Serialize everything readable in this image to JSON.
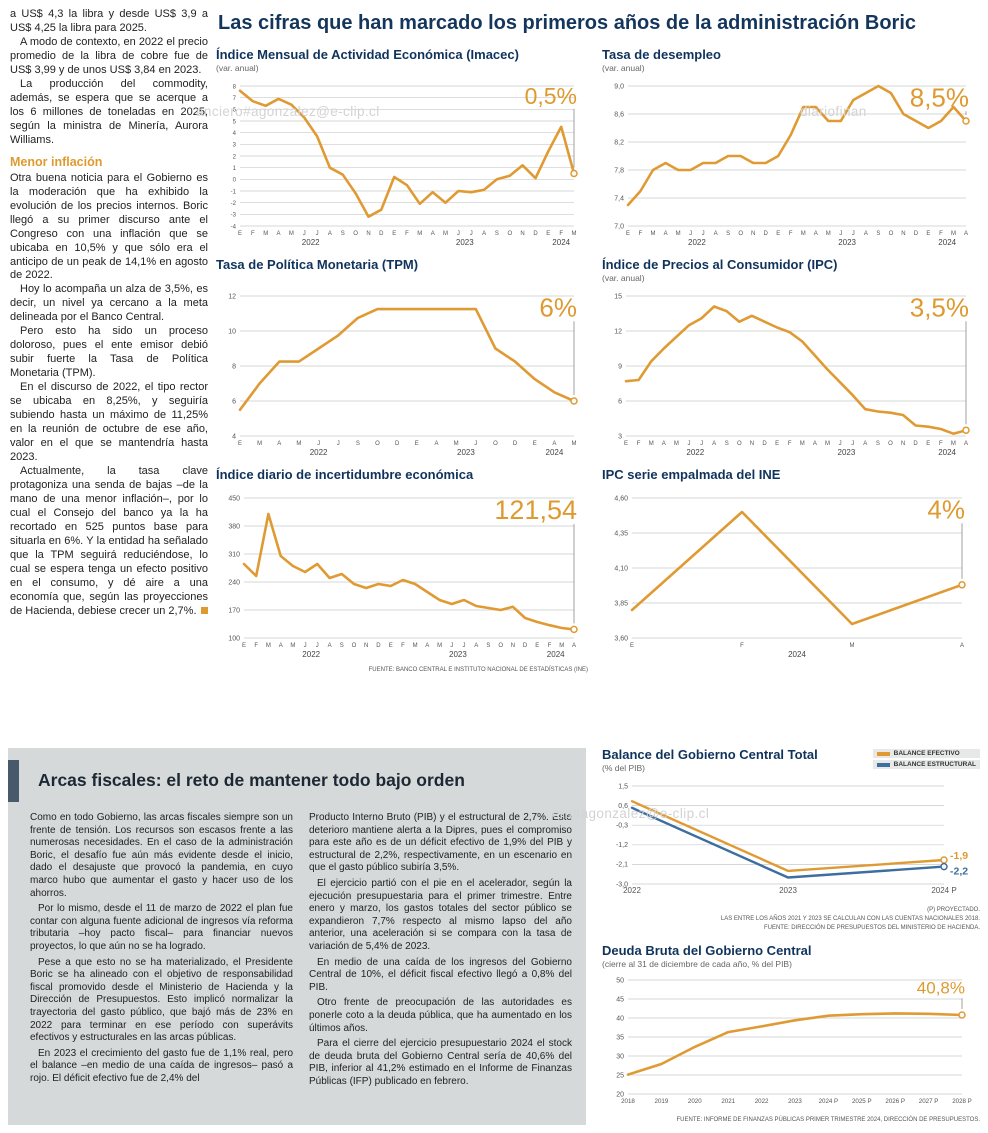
{
  "page": {
    "headline": "Las cifras que han marcado los primeros años de la administración Boric",
    "watermarks": {
      "top_left": "anciero#agonzalez@e-clip.cl",
      "top_right": "diariofinan",
      "middle": "ero#agonzalez@e-clip.cl"
    }
  },
  "colors": {
    "accent_orange": "#DE9A2F",
    "line_orange": "#E09A33",
    "line_blue": "#3C6E9F",
    "headline_navy": "#14365C"
  },
  "left_column": {
    "paragraphs": [
      "a US$ 4,3 la libra y desde US$ 3,9 a US$ 4,25 la libra para 2025.",
      "A modo de contexto, en 2022 el precio promedio de la libra de cobre fue de US$ 3,99 y de unos US$ 3,84 en 2023.",
      "La producción del commodity, además, se espera que se acerque a los 6 millones de toneladas en 2025, según la ministra de Minería, Aurora Williams."
    ],
    "subhead": "Menor inflación",
    "paragraphs2": [
      "Otra buena noticia para el Gobierno es la moderación que ha exhibido la evolución de los precios internos. Boric llegó a su primer discurso ante el Congreso con una inflación que se ubicaba en 10,5% y que sólo era el anticipo de un peak de 14,1% en agosto de 2022.",
      "Hoy lo acompaña un alza de 3,5%, es decir, un nivel ya cercano a la meta delineada por el Banco Central.",
      "Pero esto ha sido un proceso doloroso, pues el ente emisor debió subir fuerte la Tasa de Política Monetaria (TPM).",
      "En el discurso de 2022, el tipo rector se ubicaba en 8,25%, y seguiría subiendo hasta un máximo de 11,25% en la reunión de octubre de ese año, valor en el que se mantendría hasta 2023.",
      "Actualmente, la tasa clave protagoniza una senda de bajas –de la mano de una menor inflación–, por lo cual el Consejo del banco ya la ha recortado en 525 puntos base para situarla en 6%. Y la entidad ha señalado que la TPM seguirá reduciéndose, lo cual se espera tenga un efecto positivo en el consumo, y dé aire a una economía que, según las proyecciones de Hacienda, debiese crecer un 2,7%."
    ]
  },
  "fiscal_article": {
    "title": "Arcas fiscales: el reto de mantener todo bajo orden",
    "col1": [
      "Como en todo Gobierno, las arcas fiscales siempre son un frente de tensión. Los recursos son escasos frente a las numerosas necesidades. En el caso de la administración Boric, el desafío fue aún más evidente desde el inicio, dado el desajuste que provocó la pandemia, en cuyo marco hubo que aumentar el gasto y hacer uso de los ahorros.",
      "Por lo mismo, desde el 11 de marzo de 2022 el plan fue contar con alguna fuente adicional de ingresos vía reforma tributaria –hoy pacto fiscal– para financiar nuevos proyectos, lo que aún no se ha logrado.",
      "Pese a que esto no se ha materializado, el Presidente Boric se ha alineado con el objetivo de responsabilidad fiscal promovido desde el Ministerio de Hacienda y la Dirección de Presupuestos. Esto implicó normalizar la trayectoria del gasto público, que bajó más de 23% en 2022 para terminar en ese período con superávits efectivos y estructurales en las arcas públicas.",
      "En 2023 el crecimiento del gasto fue de 1,1% real, pero el balance –en medio de una caída de ingresos– pasó a rojo. El déficit efectivo fue de 2,4% del"
    ],
    "col2": [
      "Producto Interno Bruto (PIB) y el estructural de 2,7%. Este deterioro mantiene alerta a la Dipres, pues el compromiso para este año es de un déficit efectivo de 1,9% del PIB y estructural de 2,2%, respectivamente, en un escenario en que el gasto público subiría 3,5%.",
      "El ejercicio partió con el pie en el acelerador, según la ejecución presupuestaria para el primer trimestre. Entre enero y marzo, los gastos totales del sector público se expandieron 7,7% respecto al mismo lapso del año anterior, una aceleración si se compara con la tasa de variación de 5,4% de 2023.",
      "En medio de una caída de los ingresos del Gobierno Central de 10%, el déficit fiscal efectivo llegó a 0,8% del PIB.",
      "Otro frente de preocupación de las autoridades es ponerle coto a la deuda pública, que ha aumentado en los últimos años.",
      "Para el cierre del ejercicio presupuestario 2024 el stock de deuda bruta del Gobierno Central sería de 40,6% del PIB, inferior al 41,2% estimado en el Informe de Finanzas Públicas (IFP) publicado en febrero."
    ]
  },
  "sources": {
    "top_charts": "FUENTE: BANCO CENTRAL E INSTITUTO NACIONAL DE ESTADÍSTICAS (INE)",
    "balance_note1": "(P) PROYECTADO.",
    "balance_note2": "LAS ENTRE LOS AÑOS 2021 Y 2023 SE CALCULAN CON LAS CUENTAS NACIONALES 2018.",
    "balance_note3": "FUENTE: DIRECCIÓN DE PRESUPUESTOS DEL MINISTERIO DE HACIENDA.",
    "deuda": "FUENTE: INFORME DE FINANZAS PÚBLICAS PRIMER TRIMESTRE 2024, DIRECCIÓN DE PRESUPUESTOS."
  },
  "chart_data": [
    {
      "key": "imacec",
      "type": "line",
      "title": "Índice Mensual de Actividad Económica (Imacec)",
      "subtitle": "(var. anual)",
      "big_label": "0,5%",
      "big_label_size": 23,
      "h": 170,
      "margins": {
        "l": 24,
        "r": 14,
        "t": 8,
        "b": 22
      },
      "ylim": [
        -4,
        8
      ],
      "yticks": [
        8,
        7,
        6,
        5,
        4,
        3,
        2,
        1,
        0,
        -1,
        -2,
        -3,
        -4
      ],
      "ytick_format": "int",
      "ytick_size": 6,
      "x": [
        "E",
        "F",
        "M",
        "A",
        "M",
        "J",
        "J",
        "A",
        "S",
        "O",
        "N",
        "D",
        "E",
        "F",
        "M",
        "A",
        "M",
        "J",
        "J",
        "A",
        "S",
        "O",
        "N",
        "D",
        "E",
        "F",
        "M"
      ],
      "year_groups": [
        {
          "label": "2022",
          "count": 12
        },
        {
          "label": "2023",
          "count": 12
        },
        {
          "label": "2024",
          "count": 3
        }
      ],
      "series": [
        {
          "name": "Imacec var. anual",
          "color": "#E09A33",
          "values": [
            7.6,
            6.7,
            6.3,
            6.9,
            6.4,
            5.3,
            3.7,
            1.0,
            0.4,
            -1.2,
            -3.2,
            -2.6,
            0.2,
            -0.5,
            -2.1,
            -1.1,
            -2.0,
            -1.0,
            -1.1,
            -0.9,
            0.0,
            0.3,
            1.2,
            0.1,
            2.4,
            4.5,
            0.5
          ]
        }
      ]
    },
    {
      "key": "desempleo",
      "type": "line",
      "title": "Tasa de desempleo",
      "subtitle": "(var. anual)",
      "big_label": "8,5%",
      "big_label_size": 26,
      "h": 170,
      "margins": {
        "l": 26,
        "r": 14,
        "t": 8,
        "b": 22
      },
      "ylim": [
        7.0,
        9.0
      ],
      "yticks": [
        9.0,
        8.6,
        8.2,
        7.8,
        7.4,
        7.0
      ],
      "ytick_format": "c1",
      "ytick_size": 7,
      "x": [
        "E",
        "F",
        "M",
        "A",
        "M",
        "J",
        "J",
        "A",
        "S",
        "O",
        "N",
        "D",
        "E",
        "F",
        "M",
        "A",
        "M",
        "J",
        "J",
        "A",
        "S",
        "O",
        "N",
        "D",
        "E",
        "F",
        "M",
        "A"
      ],
      "year_groups": [
        {
          "label": "2022",
          "count": 12
        },
        {
          "label": "2023",
          "count": 12
        },
        {
          "label": "2024",
          "count": 4
        }
      ],
      "series": [
        {
          "name": "Tasa de desempleo",
          "color": "#E09A33",
          "values": [
            7.3,
            7.5,
            7.8,
            7.9,
            7.8,
            7.8,
            7.9,
            7.9,
            8.0,
            8.0,
            7.9,
            7.9,
            8.0,
            8.3,
            8.7,
            8.7,
            8.5,
            8.5,
            8.8,
            8.9,
            9.0,
            8.9,
            8.6,
            8.5,
            8.4,
            8.5,
            8.7,
            8.5
          ]
        }
      ]
    },
    {
      "key": "tpm",
      "type": "line",
      "title": "Tasa de Política Monetaria (TPM)",
      "big_label": "6%",
      "big_label_size": 26,
      "h": 170,
      "margins": {
        "l": 24,
        "r": 14,
        "t": 8,
        "b": 22
      },
      "ylim": [
        4,
        12
      ],
      "yticks": [
        12,
        10,
        8,
        6,
        4
      ],
      "ytick_format": "int",
      "ytick_size": 7,
      "x": [
        "E",
        "M",
        "A",
        "M",
        "J",
        "J",
        "S",
        "O",
        "D",
        "E",
        "A",
        "M",
        "J",
        "O",
        "D",
        "E",
        "A",
        "M"
      ],
      "year_groups": [
        {
          "label": "2022",
          "count": 9
        },
        {
          "label": "2023",
          "count": 6
        },
        {
          "label": "2024",
          "count": 3
        }
      ],
      "series": [
        {
          "name": "TPM",
          "color": "#E09A33",
          "values": [
            5.5,
            7.0,
            8.25,
            8.25,
            9.0,
            9.75,
            10.75,
            11.25,
            11.25,
            11.25,
            11.25,
            11.25,
            11.25,
            9.0,
            8.25,
            7.25,
            6.5,
            6.0
          ]
        }
      ]
    },
    {
      "key": "ipc",
      "type": "line",
      "title": "Índice de Precios al Consumidor (IPC)",
      "subtitle": "(var. anual)",
      "big_label": "3,5%",
      "big_label_size": 26,
      "h": 170,
      "margins": {
        "l": 24,
        "r": 14,
        "t": 8,
        "b": 22
      },
      "ylim": [
        3,
        15
      ],
      "yticks": [
        15,
        12,
        9,
        6,
        3
      ],
      "ytick_format": "int",
      "ytick_size": 7,
      "x": [
        "E",
        "F",
        "M",
        "A",
        "M",
        "J",
        "J",
        "A",
        "S",
        "O",
        "N",
        "D",
        "E",
        "F",
        "M",
        "A",
        "M",
        "J",
        "J",
        "A",
        "S",
        "O",
        "N",
        "D",
        "E",
        "F",
        "M",
        "A"
      ],
      "year_groups": [
        {
          "label": "2022",
          "count": 12
        },
        {
          "label": "2023",
          "count": 12
        },
        {
          "label": "2024",
          "count": 4
        }
      ],
      "series": [
        {
          "name": "IPC var. anual",
          "color": "#E09A33",
          "values": [
            7.7,
            7.8,
            9.4,
            10.5,
            11.5,
            12.5,
            13.1,
            14.1,
            13.7,
            12.8,
            13.3,
            12.8,
            12.3,
            11.9,
            11.1,
            9.9,
            8.7,
            7.6,
            6.5,
            5.3,
            5.1,
            5.0,
            4.8,
            3.9,
            3.8,
            3.6,
            3.2,
            3.5
          ]
        }
      ]
    },
    {
      "key": "incertidumbre",
      "type": "line",
      "title": "Índice diario de incertidumbre económica",
      "big_label": "121,54",
      "big_label_size": 27,
      "h": 170,
      "margins": {
        "l": 28,
        "r": 14,
        "t": 8,
        "b": 22
      },
      "ylim": [
        100,
        450
      ],
      "yticks": [
        450,
        380,
        310,
        240,
        170,
        100
      ],
      "ytick_format": "int",
      "ytick_size": 7,
      "x": [
        "E",
        "F",
        "M",
        "A",
        "M",
        "J",
        "J",
        "A",
        "S",
        "O",
        "N",
        "D",
        "E",
        "F",
        "M",
        "A",
        "M",
        "J",
        "J",
        "A",
        "S",
        "O",
        "N",
        "D",
        "E",
        "F",
        "M",
        "A"
      ],
      "year_groups": [
        {
          "label": "2022",
          "count": 12
        },
        {
          "label": "2023",
          "count": 12
        },
        {
          "label": "2024",
          "count": 4
        }
      ],
      "series": [
        {
          "name": "Incertidumbre económica",
          "color": "#E09A33",
          "values": [
            285,
            255,
            410,
            305,
            280,
            265,
            285,
            250,
            260,
            235,
            225,
            235,
            230,
            245,
            235,
            215,
            195,
            185,
            195,
            180,
            175,
            170,
            178,
            150,
            140,
            132,
            125,
            121.54
          ]
        }
      ]
    },
    {
      "key": "ipc_ine",
      "type": "line",
      "title": "IPC serie empalmada del INE",
      "big_label": "4%",
      "big_label_size": 26,
      "h": 170,
      "margins": {
        "l": 30,
        "r": 18,
        "t": 8,
        "b": 22
      },
      "ylim": [
        3.6,
        4.6
      ],
      "yticks": [
        4.6,
        4.35,
        4.1,
        3.85,
        3.6
      ],
      "ytick_format": "c2",
      "ytick_size": 7,
      "x": [
        "E",
        "F",
        "M",
        "A"
      ],
      "year_groups": [
        {
          "label": "2024",
          "count": 4
        }
      ],
      "series": [
        {
          "name": "IPC serie empalmada",
          "color": "#E09A33",
          "values": [
            3.8,
            4.5,
            3.7,
            3.98
          ]
        }
      ]
    },
    {
      "key": "balance",
      "type": "line",
      "title": "Balance del Gobierno Central Total",
      "subtitle": "(% del PIB)",
      "h": 122,
      "margins": {
        "l": 30,
        "r": 36,
        "t": 8,
        "b": 16
      },
      "ylim": [
        -3.0,
        1.5
      ],
      "yticks": [
        1.5,
        0.6,
        -0.3,
        -1.2,
        -2.1,
        -3.0
      ],
      "ytick_format": "c1",
      "ytick_size": 7,
      "xlabel_size": 8,
      "x": [
        "2022",
        "2023",
        "2024 P"
      ],
      "legend": [
        {
          "label": "BALANCE EFECTIVO",
          "color": "#E09A33"
        },
        {
          "label": "BALANCE ESTRUCTURAL",
          "color": "#3C6E9F"
        }
      ],
      "series": [
        {
          "name": "Balance efectivo",
          "color": "#E09A33",
          "width": 2.4,
          "end_label": "-1,9",
          "label_dy": -1,
          "values": [
            0.8,
            -2.4,
            -1.9
          ]
        },
        {
          "name": "Balance estructural",
          "color": "#3C6E9F",
          "width": 2.4,
          "end_label": "-2,2",
          "label_dy": 8,
          "values": [
            0.5,
            -2.7,
            -2.2
          ]
        }
      ]
    },
    {
      "key": "deuda",
      "type": "line",
      "title": "Deuda Bruta del Gobierno Central",
      "subtitle": "(cierre al 31 de diciembre de cada año, % del PIB)",
      "big_label": "40,8%",
      "big_label_size": 17,
      "h": 136,
      "margins": {
        "l": 26,
        "r": 18,
        "t": 6,
        "b": 16
      },
      "ylim": [
        20,
        50
      ],
      "yticks": [
        50,
        45,
        40,
        35,
        30,
        25,
        20
      ],
      "ytick_format": "int",
      "ytick_size": 7,
      "xlabel_size": 6.2,
      "x": [
        "2018",
        "2019",
        "2020",
        "2021",
        "2022",
        "2023",
        "2024 P",
        "2025 P",
        "2026 P",
        "2027 P",
        "2028 P"
      ],
      "series": [
        {
          "name": "Deuda bruta % del PIB",
          "color": "#E09A33",
          "values": [
            25.1,
            27.9,
            32.4,
            36.3,
            37.8,
            39.4,
            40.6,
            41.0,
            41.2,
            41.1,
            40.8
          ]
        }
      ]
    }
  ]
}
